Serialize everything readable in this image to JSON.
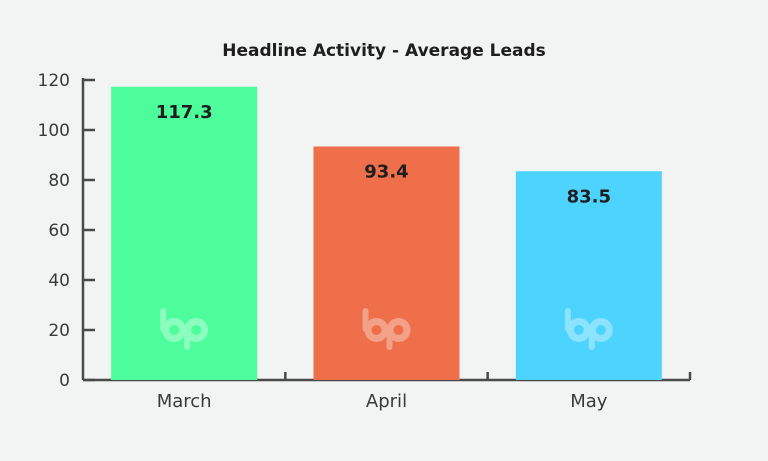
{
  "chart_data": {
    "type": "bar",
    "title": "Headline Activity - Average Leads",
    "categories": [
      "March",
      "April",
      "May"
    ],
    "values": [
      117.3,
      93.4,
      83.5
    ],
    "value_labels": [
      "117.3",
      "93.4",
      "83.5"
    ],
    "colors": [
      "#4dfc9b",
      "#ee6f49",
      "#4dd4fe"
    ],
    "ylim": [
      0,
      120
    ],
    "yticks": [
      0,
      20,
      40,
      60,
      80,
      100,
      120
    ],
    "xlabel": "",
    "ylabel": "",
    "grid": false,
    "watermark": "bp"
  }
}
